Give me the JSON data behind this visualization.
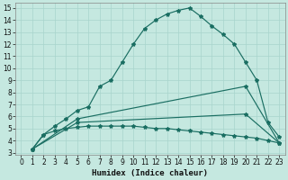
{
  "xlabel": "Humidex (Indice chaleur)",
  "bg_color": "#c5e8e0",
  "line_color": "#1a6e62",
  "grid_major_color": "#a8d4cc",
  "grid_minor_color": "#b8dcd6",
  "xlim": [
    -0.5,
    23.5
  ],
  "ylim": [
    2.8,
    15.4
  ],
  "xticks": [
    0,
    1,
    2,
    3,
    4,
    5,
    6,
    7,
    8,
    9,
    10,
    11,
    12,
    13,
    14,
    15,
    16,
    17,
    18,
    19,
    20,
    21,
    22,
    23
  ],
  "yticks": [
    3,
    4,
    5,
    6,
    7,
    8,
    9,
    10,
    11,
    12,
    13,
    14,
    15
  ],
  "curve1_x": [
    1,
    2,
    3,
    4,
    5,
    6,
    7,
    8,
    9,
    10,
    11,
    12,
    13,
    14,
    15,
    16,
    17,
    18,
    19,
    20,
    21,
    22,
    23
  ],
  "curve1_y": [
    3.3,
    4.5,
    5.2,
    5.8,
    6.5,
    6.8,
    8.5,
    9.0,
    10.5,
    12.0,
    13.3,
    14.0,
    14.5,
    14.8,
    15.0,
    14.3,
    13.5,
    12.8,
    12.0,
    10.5,
    9.0,
    5.5,
    4.3
  ],
  "curve2_x": [
    1,
    5,
    20,
    23
  ],
  "curve2_y": [
    3.3,
    5.8,
    8.5,
    3.8
  ],
  "curve3_x": [
    1,
    5,
    20,
    23
  ],
  "curve3_y": [
    3.3,
    5.5,
    6.2,
    3.8
  ],
  "curve4_x": [
    1,
    2,
    3,
    4,
    5,
    6,
    7,
    8,
    9,
    10,
    11,
    12,
    13,
    14,
    15,
    16,
    17,
    18,
    19,
    20,
    21,
    22,
    23
  ],
  "curve4_y": [
    3.3,
    4.5,
    4.8,
    5.0,
    5.1,
    5.2,
    5.2,
    5.2,
    5.2,
    5.2,
    5.1,
    5.0,
    5.0,
    4.9,
    4.8,
    4.7,
    4.6,
    4.5,
    4.4,
    4.3,
    4.2,
    4.0,
    3.8
  ],
  "tick_fontsize": 5.5,
  "xlabel_fontsize": 6.5
}
